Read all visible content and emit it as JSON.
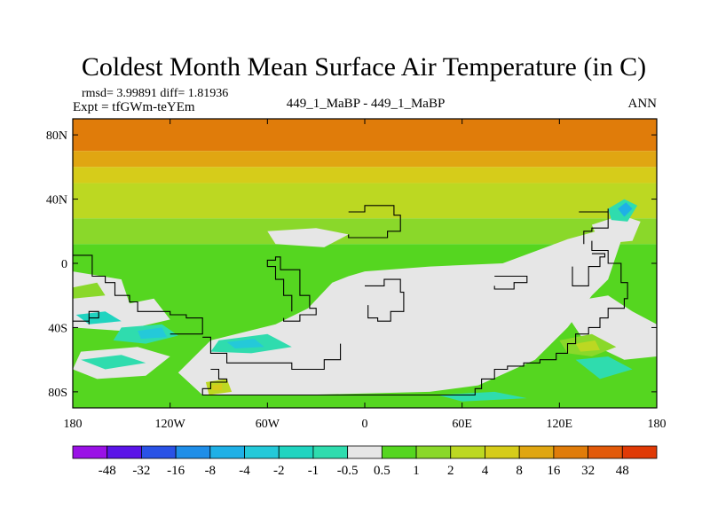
{
  "chart_data": {
    "type": "heatmap",
    "title": "Coldest Month Mean Surface Air Temperature (in C)",
    "stats_line": "rmsd= 3.99891 diff= 1.81936",
    "experiment_line": "Expt = tfGWm-teYEm",
    "comparison": "449_1_MaBP - 449_1_MaBP",
    "period": "ANN",
    "x_ticks": [
      "180",
      "120W",
      "60W",
      "0",
      "60E",
      "120E",
      "180"
    ],
    "x_tick_lons": [
      -180,
      -120,
      -60,
      0,
      60,
      120,
      180
    ],
    "y_ticks": [
      "80N",
      "40N",
      "0",
      "40S",
      "80S"
    ],
    "y_tick_lats": [
      80,
      40,
      0,
      -40,
      -80
    ],
    "xlim": [
      -180,
      180
    ],
    "ylim": [
      -90,
      90
    ],
    "colorbar": {
      "labels": [
        "-48",
        "-32",
        "-16",
        "-8",
        "-4",
        "-2",
        "-1",
        "-0.5",
        "0.5",
        "1",
        "2",
        "4",
        "8",
        "16",
        "32",
        "48"
      ],
      "colors": [
        "#9a11e6",
        "#5b14e8",
        "#2a52e6",
        "#1f8ee8",
        "#1fb0e6",
        "#24c9d9",
        "#20d4c0",
        "#2fdcae",
        "#e6e6e6",
        "#55d620",
        "#8ad82a",
        "#bcd822",
        "#d6cc1a",
        "#e0a612",
        "#e07c0a",
        "#e25a0a",
        "#e03a06"
      ]
    },
    "latitude_bands": [
      {
        "lat_top": 90,
        "lat_bottom": 70,
        "color": "#e07c0a"
      },
      {
        "lat_top": 70,
        "lat_bottom": 60,
        "color": "#e0a612"
      },
      {
        "lat_top": 60,
        "lat_bottom": 50,
        "color": "#d6cc1a"
      },
      {
        "lat_top": 50,
        "lat_bottom": 28,
        "color": "#bcd822"
      },
      {
        "lat_top": 28,
        "lat_bottom": 12,
        "color": "#8ad82a"
      },
      {
        "lat_top": 12,
        "lat_bottom": -90,
        "color": "#55d620"
      }
    ],
    "regions": [
      {
        "label": "near-zero",
        "color": "#e6e6e6",
        "points": [
          [
            0,
            -5
          ],
          [
            40,
            -2
          ],
          [
            85,
            0
          ],
          [
            125,
            15
          ],
          [
            150,
            22
          ],
          [
            160,
            20
          ],
          [
            150,
            -10
          ],
          [
            140,
            -20
          ],
          [
            125,
            -40
          ],
          [
            105,
            -60
          ],
          [
            70,
            -76
          ],
          [
            40,
            -80
          ],
          [
            -40,
            -82
          ],
          [
            -100,
            -82
          ],
          [
            -115,
            -68
          ],
          [
            -95,
            -48
          ],
          [
            -55,
            -38
          ],
          [
            -35,
            -28
          ],
          [
            -20,
            -12
          ],
          [
            -10,
            -8
          ]
        ]
      },
      {
        "label": "near-zero",
        "color": "#e6e6e6",
        "points": [
          [
            -180,
            -5
          ],
          [
            -150,
            -10
          ],
          [
            -145,
            -25
          ],
          [
            -130,
            -22
          ],
          [
            -120,
            -35
          ],
          [
            -150,
            -42
          ],
          [
            -180,
            -40
          ]
        ]
      },
      {
        "label": "near-zero",
        "color": "#e6e6e6",
        "points": [
          [
            -175,
            -55
          ],
          [
            -140,
            -52
          ],
          [
            -120,
            -58
          ],
          [
            -135,
            -70
          ],
          [
            -165,
            -72
          ],
          [
            -180,
            -66
          ]
        ]
      },
      {
        "label": "near-zero",
        "color": "#e6e6e6",
        "points": [
          [
            120,
            -25
          ],
          [
            150,
            -20
          ],
          [
            165,
            -30
          ],
          [
            180,
            -38
          ],
          [
            180,
            -58
          ],
          [
            160,
            -60
          ],
          [
            135,
            -48
          ]
        ]
      },
      {
        "label": "near-zero",
        "color": "#e6e6e6",
        "points": [
          [
            -60,
            20
          ],
          [
            -30,
            22
          ],
          [
            -10,
            18
          ],
          [
            -25,
            10
          ],
          [
            -55,
            12
          ]
        ]
      },
      {
        "label": "near-zero",
        "color": "#e6e6e6",
        "points": [
          [
            140,
            24
          ],
          [
            158,
            30
          ],
          [
            170,
            26
          ],
          [
            165,
            14
          ],
          [
            145,
            12
          ]
        ]
      },
      {
        "label": "negative",
        "color": "#2fdcae",
        "points": [
          [
            -150,
            -40
          ],
          [
            -125,
            -38
          ],
          [
            -115,
            -45
          ],
          [
            -135,
            -50
          ],
          [
            -155,
            -48
          ]
        ]
      },
      {
        "label": "negative",
        "color": "#2fdcae",
        "points": [
          [
            -90,
            -48
          ],
          [
            -60,
            -44
          ],
          [
            -45,
            -52
          ],
          [
            -70,
            -56
          ],
          [
            -95,
            -55
          ]
        ]
      },
      {
        "label": "negative",
        "color": "#24c9d9",
        "points": [
          [
            -140,
            -42
          ],
          [
            -125,
            -40
          ],
          [
            -122,
            -46
          ],
          [
            -138,
            -47
          ]
        ]
      },
      {
        "label": "negative",
        "color": "#24c9d9",
        "points": [
          [
            -85,
            -49
          ],
          [
            -68,
            -47
          ],
          [
            -62,
            -52
          ],
          [
            -80,
            -53
          ]
        ]
      },
      {
        "label": "negative",
        "color": "#20d4c0",
        "points": [
          [
            -178,
            -32
          ],
          [
            -160,
            -30
          ],
          [
            -150,
            -36
          ],
          [
            -170,
            -38
          ]
        ]
      },
      {
        "label": "negative",
        "color": "#2fdcae",
        "points": [
          [
            -175,
            -60
          ],
          [
            -150,
            -57
          ],
          [
            -135,
            -62
          ],
          [
            -160,
            -66
          ]
        ]
      },
      {
        "label": "negative",
        "color": "#2fdcae",
        "points": [
          [
            150,
            34
          ],
          [
            160,
            40
          ],
          [
            168,
            36
          ],
          [
            162,
            26
          ],
          [
            152,
            27
          ]
        ]
      },
      {
        "label": "negative",
        "color": "#1fb0e6",
        "points": [
          [
            156,
            34
          ],
          [
            161,
            38
          ],
          [
            165,
            34
          ],
          [
            160,
            29
          ]
        ]
      },
      {
        "label": "negative",
        "color": "#2fdcae",
        "points": [
          [
            130,
            -60
          ],
          [
            150,
            -58
          ],
          [
            165,
            -66
          ],
          [
            145,
            -72
          ]
        ]
      },
      {
        "label": "negative",
        "color": "#2fdcae",
        "points": [
          [
            45,
            -82
          ],
          [
            80,
            -80
          ],
          [
            100,
            -84
          ],
          [
            60,
            -86
          ]
        ]
      },
      {
        "label": "positive",
        "color": "#bcd822",
        "points": [
          [
            -98,
            -74
          ],
          [
            -85,
            -72
          ],
          [
            -82,
            -80
          ],
          [
            -96,
            -82
          ]
        ]
      },
      {
        "label": "positive",
        "color": "#d6cc1a",
        "points": [
          [
            -94,
            -76
          ],
          [
            -88,
            -75
          ],
          [
            -88,
            -79
          ],
          [
            -94,
            -79
          ]
        ]
      },
      {
        "label": "positive",
        "color": "#8ad82a",
        "points": [
          [
            120,
            -48
          ],
          [
            140,
            -44
          ],
          [
            155,
            -52
          ],
          [
            140,
            -58
          ],
          [
            125,
            -56
          ]
        ]
      },
      {
        "label": "positive",
        "color": "#bcd822",
        "points": [
          [
            130,
            -50
          ],
          [
            142,
            -48
          ],
          [
            145,
            -54
          ],
          [
            133,
            -55
          ]
        ]
      },
      {
        "label": "positive",
        "color": "#8ad82a",
        "points": [
          [
            -180,
            -15
          ],
          [
            -165,
            -12
          ],
          [
            -160,
            -20
          ],
          [
            -180,
            -22
          ]
        ]
      }
    ],
    "land_outlines": [
      [
        [
          -180,
          5
        ],
        [
          -168,
          5
        ],
        [
          -168,
          -8
        ],
        [
          -160,
          -12
        ],
        [
          -154,
          -20
        ],
        [
          -145,
          -24
        ],
        [
          -140,
          -30
        ],
        [
          -120,
          -32
        ],
        [
          -110,
          -34
        ],
        [
          -100,
          -38
        ],
        [
          -100,
          -44
        ],
        [
          -120,
          -44
        ]
      ],
      [
        [
          -100,
          -46
        ],
        [
          -95,
          -56
        ],
        [
          -85,
          -62
        ],
        [
          -75,
          -62
        ],
        [
          -60,
          -62
        ],
        [
          -45,
          -66
        ],
        [
          -30,
          -66
        ],
        [
          -25,
          -60
        ],
        [
          -15,
          -50
        ]
      ],
      [
        [
          -95,
          -66
        ],
        [
          -90,
          -72
        ],
        [
          -85,
          -74
        ],
        [
          -95,
          -78
        ],
        [
          -100,
          -82
        ],
        [
          -60,
          -82
        ],
        [
          60,
          -82
        ],
        [
          68,
          -78
        ],
        [
          72,
          -72
        ],
        [
          80,
          -66
        ],
        [
          88,
          -64
        ],
        [
          98,
          -62
        ],
        [
          108,
          -60
        ],
        [
          118,
          -56
        ],
        [
          125,
          -50
        ],
        [
          130,
          -44
        ],
        [
          138,
          -40
        ],
        [
          145,
          -34
        ],
        [
          150,
          -28
        ],
        [
          160,
          -22
        ],
        [
          162,
          -12
        ],
        [
          158,
          0
        ],
        [
          150,
          8
        ],
        [
          140,
          14
        ]
      ],
      [
        [
          -45,
          -30
        ],
        [
          -45,
          -20
        ],
        [
          -50,
          -10
        ],
        [
          -55,
          -2
        ],
        [
          -60,
          2
        ],
        [
          -55,
          4
        ],
        [
          -52,
          -4
        ],
        [
          -40,
          -20
        ],
        [
          -34,
          -28
        ],
        [
          -30,
          -32
        ],
        [
          -40,
          -36
        ],
        [
          -50,
          -34
        ]
      ],
      [
        [
          -10,
          32
        ],
        [
          0,
          36
        ],
        [
          12,
          36
        ],
        [
          18,
          30
        ],
        [
          22,
          20
        ],
        [
          14,
          16
        ],
        [
          0,
          16
        ],
        [
          -10,
          18
        ]
      ],
      [
        [
          0,
          -14
        ],
        [
          12,
          -10
        ],
        [
          22,
          -18
        ],
        [
          24,
          -30
        ],
        [
          16,
          -36
        ],
        [
          8,
          -34
        ],
        [
          2,
          -26
        ]
      ],
      [
        [
          -180,
          -36
        ],
        [
          -170,
          -30
        ],
        [
          -164,
          -34
        ],
        [
          -170,
          -38
        ]
      ],
      [
        [
          80,
          -8
        ],
        [
          95,
          -8
        ],
        [
          100,
          -12
        ],
        [
          92,
          -16
        ],
        [
          80,
          -14
        ]
      ],
      [
        [
          132,
          32
        ],
        [
          140,
          32
        ],
        [
          150,
          34
        ],
        [
          150,
          22
        ],
        [
          140,
          20
        ],
        [
          135,
          12
        ]
      ],
      [
        [
          140,
          6
        ],
        [
          148,
          4
        ],
        [
          145,
          -2
        ],
        [
          138,
          -14
        ],
        [
          130,
          -14
        ],
        [
          128,
          -2
        ]
      ]
    ]
  }
}
